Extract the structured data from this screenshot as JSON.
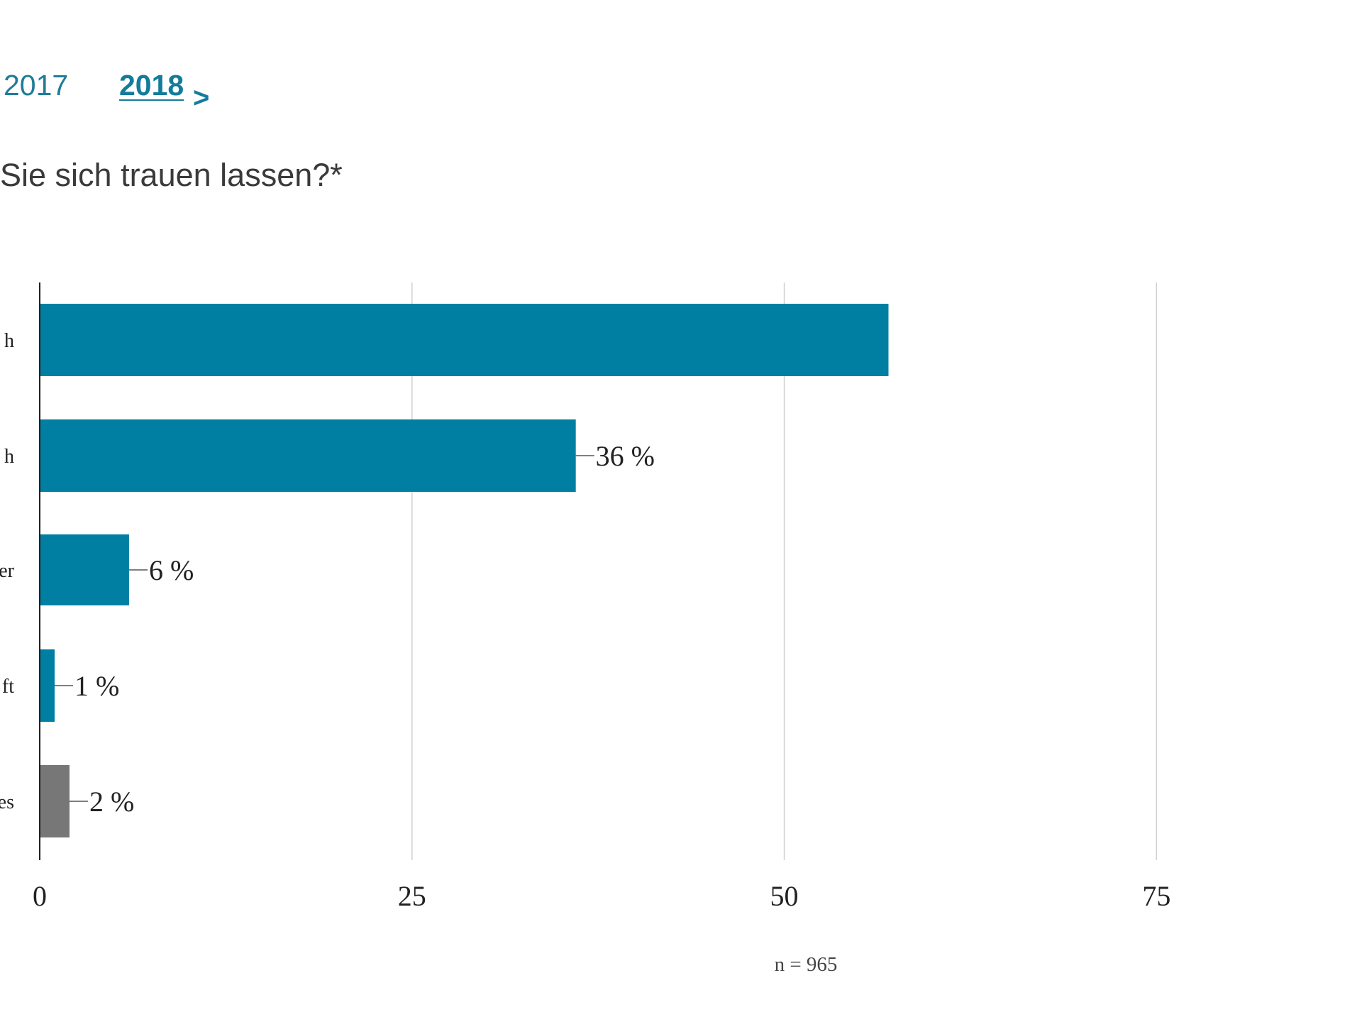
{
  "year_nav": {
    "prev_year": "2017",
    "current_year": "2018",
    "next_arrow": ">"
  },
  "question": {
    "text": "Sie sich trauen lassen?*"
  },
  "colors": {
    "primary": "#007fa3",
    "other": "#777777",
    "grid": "#d0d0d0",
    "axis": "#222222",
    "text": "#222222"
  },
  "chart_data": {
    "type": "bar",
    "orientation": "horizontal",
    "categories": [
      "h",
      "h",
      "er",
      "ft",
      "es"
    ],
    "values": [
      57,
      36,
      6,
      1,
      2
    ],
    "value_labels": [
      "",
      "36 %",
      "6 %",
      "1 %",
      "2 %"
    ],
    "bar_colors": [
      "#007fa3",
      "#007fa3",
      "#007fa3",
      "#007fa3",
      "#777777"
    ],
    "x_ticks": [
      0,
      25,
      50,
      75
    ],
    "xlim": [
      0,
      88.8
    ],
    "grid": true,
    "note": "n = 965"
  }
}
